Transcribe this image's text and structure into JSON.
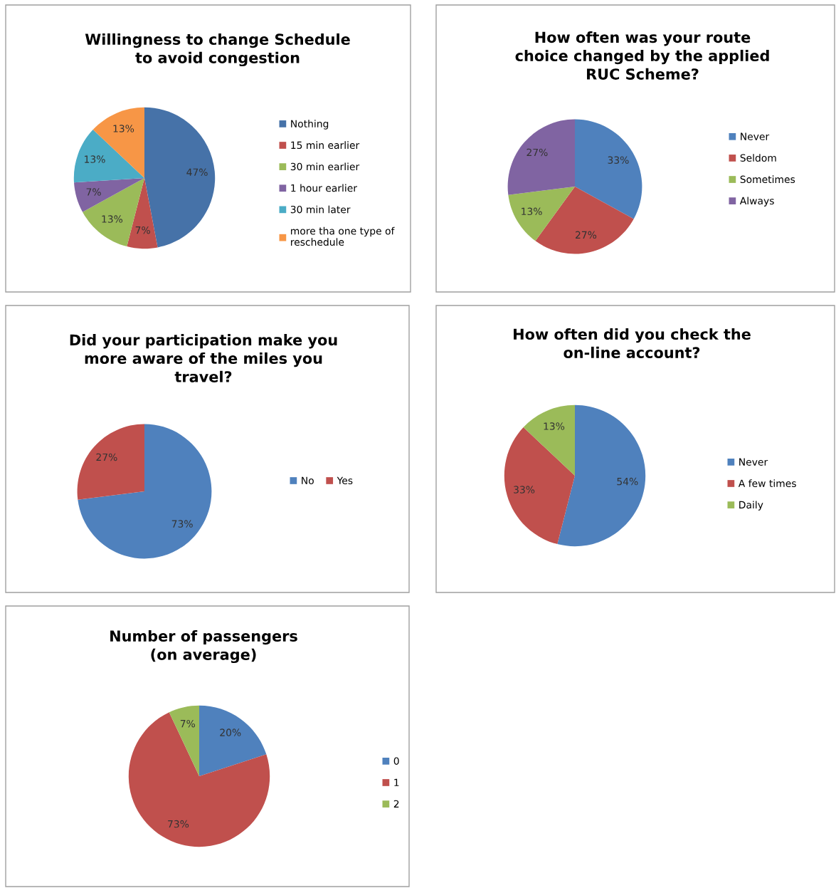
{
  "chart_data": [
    {
      "type": "pie",
      "title": "Willingness to change Schedule\nto avoid congestion",
      "categories": [
        "Nothing",
        "15 min earlier",
        "30 min earlier",
        "1 hour earlier",
        "30 min later",
        "more tha one type of\nreschedule"
      ],
      "values": [
        47,
        7,
        13,
        7,
        13,
        13
      ],
      "value_labels": [
        "47%",
        "7%",
        "13%",
        "7%",
        "13%",
        "13%"
      ],
      "colors": [
        "#4672a8",
        "#c0504d",
        "#9bbb59",
        "#8064a2",
        "#4bacc6",
        "#f79646"
      ],
      "legend": "right"
    },
    {
      "type": "pie",
      "title": "How often was your route\nchoice changed by the applied\nRUC Scheme?",
      "categories": [
        "Never",
        "Seldom",
        "Sometimes",
        "Always"
      ],
      "values": [
        33,
        27,
        13,
        27
      ],
      "value_labels": [
        "33%",
        "27%",
        "13%",
        "27%"
      ],
      "colors": [
        "#4f81bd",
        "#c0504d",
        "#9bbb59",
        "#8064a2"
      ],
      "legend": "right"
    },
    {
      "type": "pie",
      "title": "Did your participation make you\nmore aware of the miles you\ntravel?",
      "categories": [
        "No",
        "Yes"
      ],
      "values": [
        73,
        27
      ],
      "value_labels": [
        "73%",
        "27%"
      ],
      "colors": [
        "#4f81bd",
        "#c0504d"
      ],
      "legend": "right"
    },
    {
      "type": "pie",
      "title": "How often did you check the\non-line account?",
      "categories": [
        "Never",
        "A few times",
        "Daily"
      ],
      "values": [
        54,
        33,
        13
      ],
      "value_labels": [
        "54%",
        "33%",
        "13%"
      ],
      "colors": [
        "#4f81bd",
        "#c0504d",
        "#9bbb59"
      ],
      "legend": "right"
    },
    {
      "type": "pie",
      "title": "Number of passengers\n(on average)",
      "categories": [
        "0",
        "1",
        "2"
      ],
      "values": [
        20,
        73,
        7
      ],
      "value_labels": [
        "20%",
        "73%",
        "7%"
      ],
      "colors": [
        "#4f81bd",
        "#c0504d",
        "#9bbb59"
      ],
      "legend": "right"
    }
  ]
}
